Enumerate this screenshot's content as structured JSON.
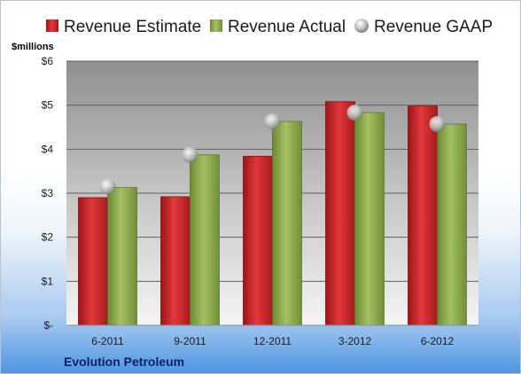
{
  "company": "Evolution Petroleum",
  "chart_data": {
    "type": "bar",
    "unit_label": "$millions",
    "categories": [
      "6-2011",
      "9-2011",
      "12-2011",
      "3-2012",
      "6-2012"
    ],
    "series": [
      {
        "name": "Revenue Estimate",
        "kind": "bar",
        "color": "#d6282b",
        "values": [
          2.9,
          2.92,
          3.84,
          5.08,
          4.98
        ]
      },
      {
        "name": "Revenue Actual",
        "kind": "bar",
        "color": "#8fb04f",
        "values": [
          3.13,
          3.87,
          4.63,
          4.83,
          4.57
        ]
      },
      {
        "name": "Revenue GAAP",
        "kind": "marker",
        "color": "#b9b9b9",
        "values": [
          3.15,
          3.87,
          4.63,
          4.83,
          4.57
        ]
      }
    ],
    "yticks": [
      "$-",
      "$1",
      "$2",
      "$3",
      "$4",
      "$5",
      "$6"
    ],
    "ylim": [
      0,
      6
    ],
    "grid": true,
    "legend_position": "top"
  }
}
